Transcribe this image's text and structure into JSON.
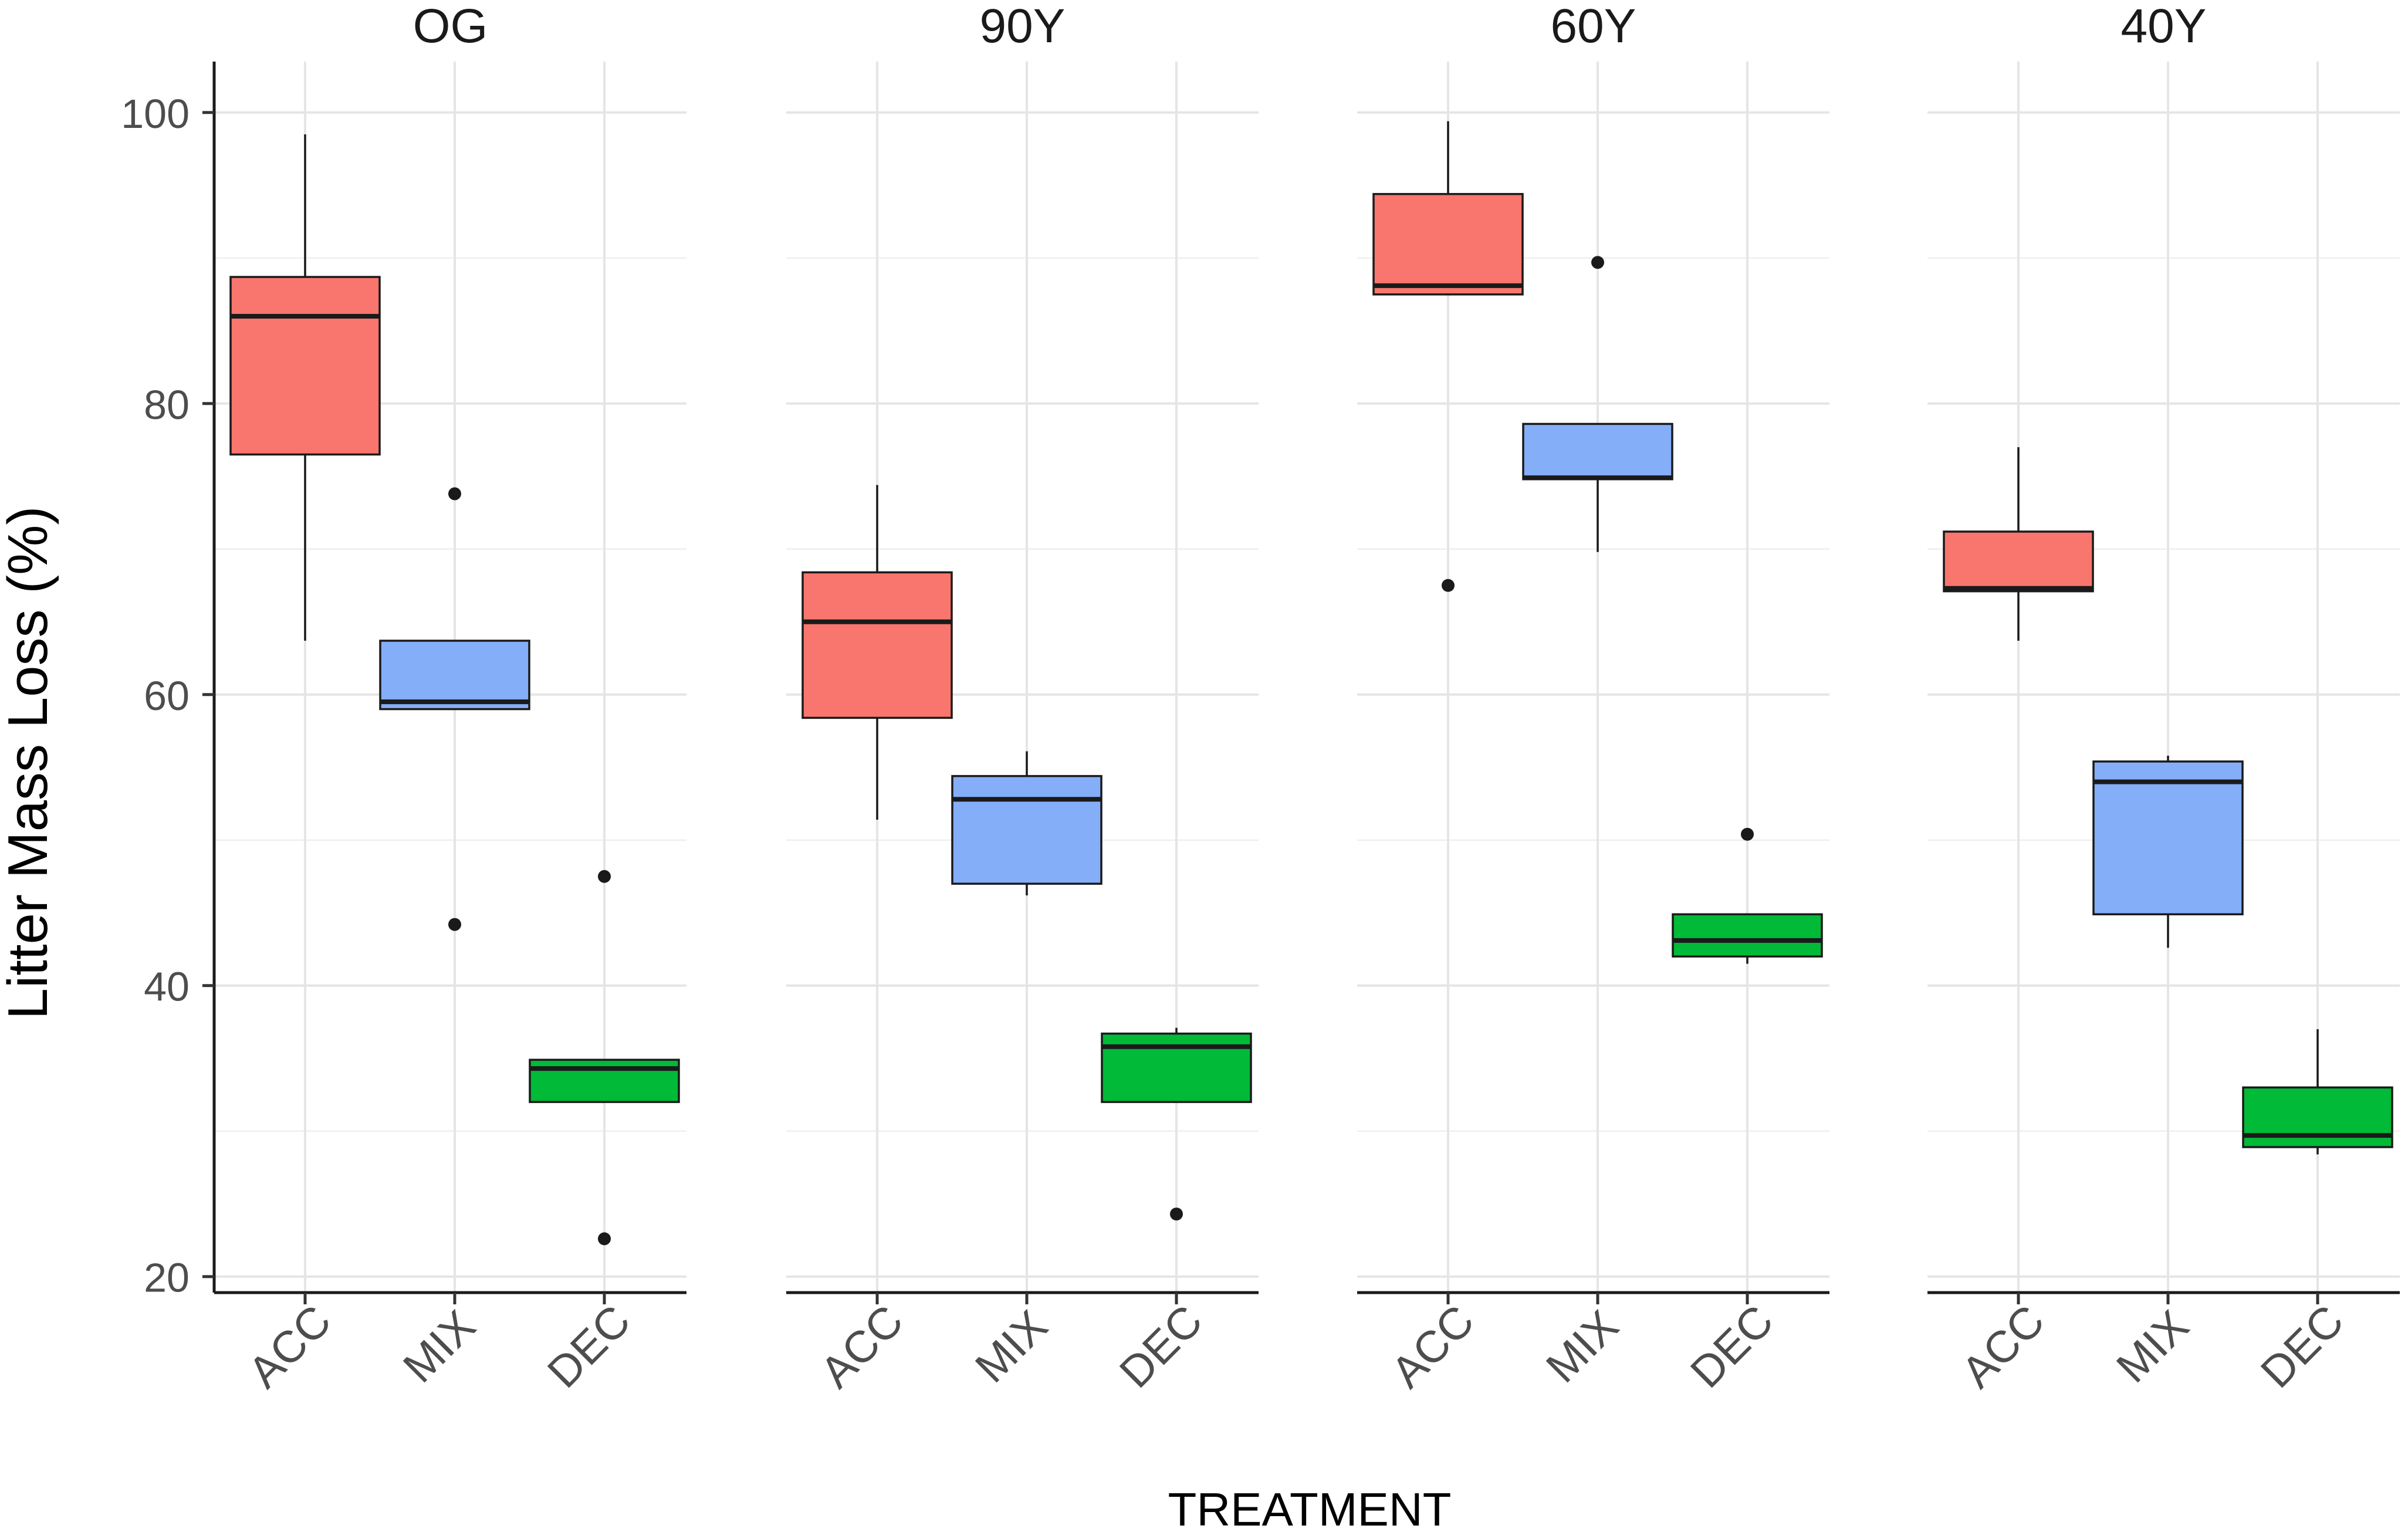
{
  "chart_data": {
    "type": "boxplot",
    "ylabel": "Litter Mass Loss (%)",
    "xlabel": "TREATMENT",
    "ylim": [
      18.9,
      103.5
    ],
    "y_ticks": [
      20,
      40,
      60,
      80,
      100
    ],
    "y_tick_labels": [
      "20",
      "40",
      "60",
      "80",
      "100"
    ],
    "y_minor_gridlines": [
      30,
      50,
      70,
      90
    ],
    "grid": true,
    "categories": [
      "ACC",
      "MIX",
      "DEC"
    ],
    "colors": {
      "ACC": "#F8766D",
      "MIX": "#85AEF9",
      "DEC": "#00BA38"
    },
    "panels": [
      {
        "title": "OG",
        "boxes": [
          {
            "category": "ACC",
            "whisker_low": 63.7,
            "q1": 76.5,
            "median": 86.0,
            "q3": 88.7,
            "whisker_high": 98.5,
            "outliers": []
          },
          {
            "category": "MIX",
            "whisker_low": 59.0,
            "q1": 59.0,
            "median": 59.5,
            "q3": 63.7,
            "whisker_high": 63.7,
            "outliers": [
              73.8,
              44.2
            ]
          },
          {
            "category": "DEC",
            "whisker_low": 32.0,
            "q1": 32.0,
            "median": 34.3,
            "q3": 34.9,
            "whisker_high": 34.9,
            "outliers": [
              47.5,
              22.6
            ]
          }
        ]
      },
      {
        "title": "90Y",
        "boxes": [
          {
            "category": "ACC",
            "whisker_low": 51.4,
            "q1": 58.4,
            "median": 65.0,
            "q3": 68.4,
            "whisker_high": 74.4,
            "outliers": []
          },
          {
            "category": "MIX",
            "whisker_low": 46.2,
            "q1": 47.0,
            "median": 52.8,
            "q3": 54.4,
            "whisker_high": 56.1,
            "outliers": []
          },
          {
            "category": "DEC",
            "whisker_low": 32.0,
            "q1": 32.0,
            "median": 35.8,
            "q3": 36.7,
            "whisker_high": 37.1,
            "outliers": [
              24.3
            ]
          }
        ]
      },
      {
        "title": "60Y",
        "boxes": [
          {
            "category": "ACC",
            "whisker_low": 87.5,
            "q1": 87.5,
            "median": 88.1,
            "q3": 94.4,
            "whisker_high": 99.4,
            "outliers": [
              67.5
            ]
          },
          {
            "category": "MIX",
            "whisker_low": 69.8,
            "q1": 74.8,
            "median": 74.9,
            "q3": 78.6,
            "whisker_high": 78.6,
            "outliers": [
              89.7
            ]
          },
          {
            "category": "DEC",
            "whisker_low": 41.5,
            "q1": 42.0,
            "median": 43.1,
            "q3": 44.9,
            "whisker_high": 44.9,
            "outliers": [
              50.4
            ]
          }
        ]
      },
      {
        "title": "40Y",
        "boxes": [
          {
            "category": "ACC",
            "whisker_low": 63.7,
            "q1": 67.1,
            "median": 67.3,
            "q3": 71.2,
            "whisker_high": 77.0,
            "outliers": []
          },
          {
            "category": "MIX",
            "whisker_low": 42.6,
            "q1": 44.9,
            "median": 54.0,
            "q3": 55.4,
            "whisker_high": 55.8,
            "outliers": []
          },
          {
            "category": "DEC",
            "whisker_low": 28.4,
            "q1": 28.9,
            "median": 29.7,
            "q3": 33.0,
            "whisker_high": 37.0,
            "outliers": []
          }
        ]
      }
    ]
  }
}
